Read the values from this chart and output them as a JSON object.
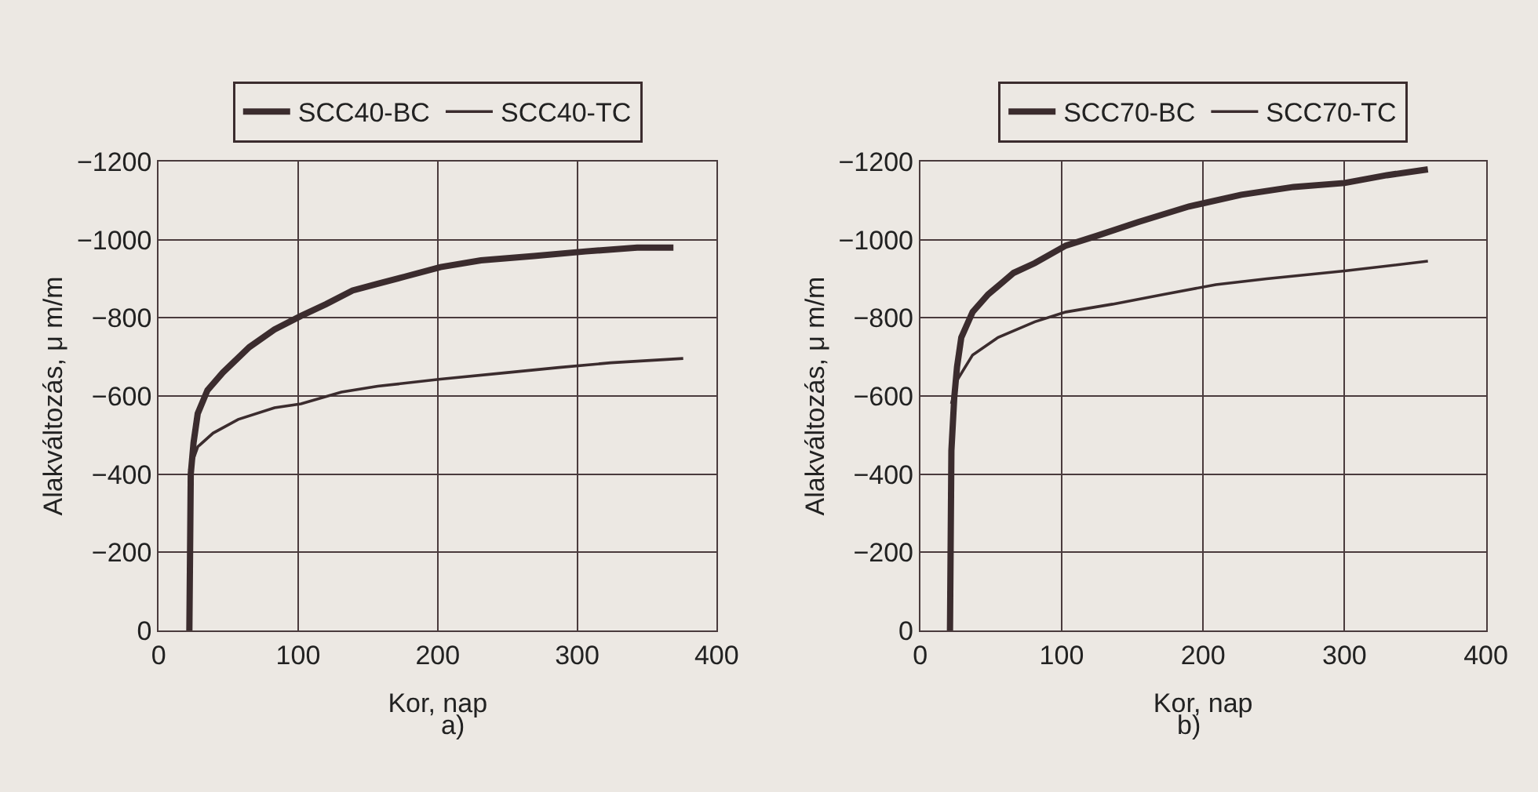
{
  "chart_data": [
    {
      "type": "line",
      "xlabel": "Kor, nap",
      "ylabel": "Alakváltozás, μ m/m",
      "annotations": [
        "a)"
      ],
      "xlim": [
        0,
        400
      ],
      "xticks": [
        0,
        100,
        200,
        300,
        400
      ],
      "ylim": [
        0,
        -1200
      ],
      "yticks": [
        {
          "value": 0,
          "label": "0"
        },
        {
          "value": -200,
          "label": "−200"
        },
        {
          "value": -400,
          "label": "−400"
        },
        {
          "value": -600,
          "label": "−600"
        },
        {
          "value": -800,
          "label": "−800"
        },
        {
          "value": -1000,
          "label": "−1000"
        },
        {
          "value": -1200,
          "label": "−1200"
        }
      ],
      "grid": true,
      "legend": "top",
      "marker": "none",
      "line_style": "solid",
      "series": [
        {
          "name": "SCC40-BC",
          "color": "#3b2c2e",
          "x": [
            22,
            23,
            25,
            28,
            35,
            46,
            65,
            83,
            102,
            120,
            139,
            157,
            176,
            202,
            231,
            269,
            306,
            343,
            369
          ],
          "values": [
            0,
            -400,
            -480,
            -555,
            -615,
            -660,
            -725,
            -770,
            -805,
            -835,
            -870,
            -887,
            -905,
            -930,
            -947,
            -958,
            -970,
            -980,
            -980
          ]
        },
        {
          "name": "SCC40-TC",
          "color": "#3b2c2e",
          "x": [
            22,
            28,
            39,
            57,
            83,
            102,
            131,
            157,
            202,
            250,
            287,
            324,
            376
          ],
          "values": [
            -410,
            -470,
            -505,
            -540,
            -570,
            -580,
            -610,
            -625,
            -643,
            -660,
            -673,
            -685,
            -696
          ]
        }
      ]
    },
    {
      "type": "line",
      "xlabel": "Kor, nap",
      "ylabel": "Alakváltozás, μ m/m",
      "annotations": [
        "b)"
      ],
      "xlim": [
        0,
        400
      ],
      "xticks": [
        0,
        100,
        200,
        300,
        400
      ],
      "ylim": [
        0,
        -1200
      ],
      "yticks": [
        {
          "value": 0,
          "label": "0"
        },
        {
          "value": -200,
          "label": "−200"
        },
        {
          "value": -400,
          "label": "−400"
        },
        {
          "value": -600,
          "label": "−600"
        },
        {
          "value": -800,
          "label": "−800"
        },
        {
          "value": -1000,
          "label": "−1000"
        },
        {
          "value": -1200,
          "label": "−1200"
        }
      ],
      "grid": true,
      "legend": "top",
      "marker": "none",
      "line_style": "solid",
      "series": [
        {
          "name": "SCC70-BC",
          "color": "#3b2c2e",
          "x": [
            21,
            22,
            24,
            26,
            29,
            37,
            48,
            66,
            81,
            103,
            125,
            154,
            190,
            227,
            264,
            300,
            330,
            359
          ],
          "values": [
            0,
            -460,
            -595,
            -675,
            -750,
            -815,
            -860,
            -915,
            -940,
            -985,
            -1010,
            -1045,
            -1085,
            -1115,
            -1135,
            -1145,
            -1165,
            -1180
          ]
        },
        {
          "name": "SCC70-TC",
          "color": "#3b2c2e",
          "x": [
            22,
            26,
            37,
            55,
            81,
            103,
            136,
            172,
            209,
            245,
            300,
            359
          ],
          "values": [
            -580,
            -640,
            -705,
            -750,
            -790,
            -815,
            -835,
            -860,
            -885,
            -900,
            -920,
            -945
          ]
        }
      ]
    }
  ]
}
